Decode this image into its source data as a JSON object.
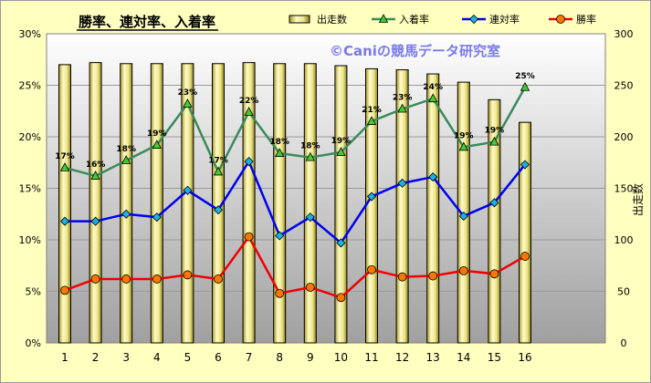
{
  "chart_data": {
    "type": "bar",
    "title": "勝率、連対率、入着率",
    "watermark": "©Caniの競馬データ研究室",
    "categories": [
      "1",
      "2",
      "3",
      "4",
      "5",
      "6",
      "7",
      "8",
      "9",
      "10",
      "11",
      "12",
      "13",
      "14",
      "15",
      "16"
    ],
    "left_axis": {
      "ylim": [
        0,
        30
      ],
      "ticks": [
        "0%",
        "5%",
        "10%",
        "15%",
        "20%",
        "25%",
        "30%"
      ]
    },
    "right_axis": {
      "ylabel": "出走数",
      "ylim": [
        0,
        300
      ],
      "ticks": [
        "0",
        "50",
        "100",
        "150",
        "200",
        "250",
        "300"
      ]
    },
    "grid": true,
    "legend_position": "top",
    "series": [
      {
        "name": "出走数",
        "type": "bar",
        "axis": "right",
        "color": "#f5f0a0",
        "values": [
          270,
          272,
          271,
          271,
          271,
          271,
          272,
          271,
          271,
          269,
          266,
          265,
          261,
          253,
          236,
          214
        ]
      },
      {
        "name": "入着率",
        "type": "line",
        "axis": "left",
        "color": "#3a8a5a",
        "marker": "triangle",
        "marker_color": "#44cc33",
        "values": [
          17.0,
          16.2,
          17.7,
          19.2,
          23.2,
          16.6,
          22.4,
          18.4,
          18.0,
          18.5,
          21.5,
          22.7,
          23.7,
          19.0,
          19.5,
          24.8
        ],
        "labels": [
          "17%",
          "16%",
          "18%",
          "19%",
          "23%",
          "17%",
          "22%",
          "18%",
          "18%",
          "19%",
          "21%",
          "23%",
          "24%",
          "19%",
          "19%",
          "25%"
        ]
      },
      {
        "name": "連対率",
        "type": "line",
        "axis": "left",
        "color": "#0000ee",
        "marker": "diamond",
        "marker_color": "#1ab0e8",
        "values": [
          11.8,
          11.8,
          12.5,
          12.2,
          14.8,
          12.9,
          17.6,
          10.4,
          12.2,
          9.7,
          14.2,
          15.5,
          16.1,
          12.3,
          13.6,
          17.3
        ]
      },
      {
        "name": "勝率",
        "type": "line",
        "axis": "left",
        "color": "#ee0000",
        "marker": "circle",
        "marker_color": "#ff7700",
        "values": [
          5.1,
          6.2,
          6.2,
          6.2,
          6.6,
          6.2,
          10.3,
          4.8,
          5.4,
          4.4,
          7.1,
          6.4,
          6.5,
          7.0,
          6.7,
          8.4
        ]
      }
    ]
  }
}
